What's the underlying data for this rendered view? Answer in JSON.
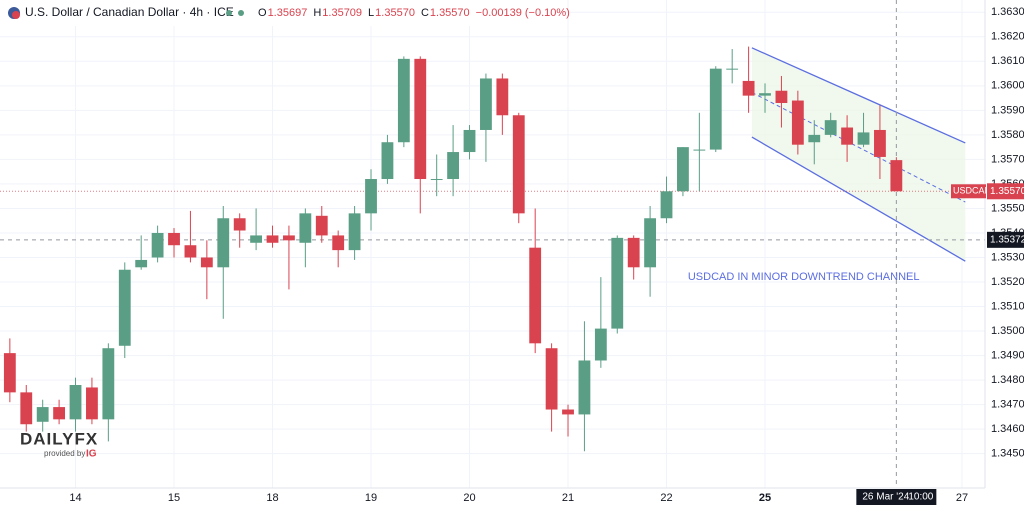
{
  "header": {
    "title": "U.S. Dollar / Canadian Dollar · 4h · ICE",
    "ohlc": [
      {
        "label": "O",
        "value": "1.35697"
      },
      {
        "label": "H",
        "value": "1.35709"
      },
      {
        "label": "L",
        "value": "1.35570"
      },
      {
        "label": "C",
        "value": "1.35570"
      }
    ],
    "change": "−0.00139 (−0.10%)"
  },
  "logo": {
    "brand": "DAILYFX",
    "provided": "provided by",
    "ig": "IG"
  },
  "chart_data": {
    "type": "candlestick",
    "up_color": "#5a9e85",
    "down_color": "#d9434f",
    "open": [
      1.3491,
      1.3475,
      1.3463,
      1.3469,
      1.3464,
      1.3477,
      1.3464,
      1.3494,
      1.3526,
      1.353,
      1.354,
      1.3535,
      1.353,
      1.3526,
      1.3546,
      1.3536,
      1.3539,
      1.3539,
      1.3536,
      1.3547,
      1.3539,
      1.3533,
      1.3548,
      1.3562,
      1.3577,
      1.3611,
      1.3562,
      1.3562,
      1.3573,
      1.3582,
      1.3603,
      1.3588,
      1.3534,
      1.3493,
      1.3468,
      1.3466,
      1.3488,
      1.3501,
      1.3538,
      1.3526,
      1.3546,
      1.3557,
      1.3574,
      1.3574,
      1.3607,
      1.3602,
      1.3596,
      1.3598,
      1.3594,
      1.3577,
      1.358,
      1.3583,
      1.3576,
      1.3582,
      1.35697
    ],
    "high": [
      1.3497,
      1.3478,
      1.3472,
      1.3472,
      1.3481,
      1.3481,
      1.3495,
      1.3528,
      1.3539,
      1.3543,
      1.3542,
      1.3549,
      1.3537,
      1.3551,
      1.3548,
      1.355,
      1.3543,
      1.3543,
      1.355,
      1.3551,
      1.3541,
      1.3551,
      1.3566,
      1.358,
      1.3612,
      1.3612,
      1.3572,
      1.3584,
      1.3584,
      1.3605,
      1.3605,
      1.3589,
      1.355,
      1.3495,
      1.347,
      1.3504,
      1.3522,
      1.3539,
      1.3539,
      1.3551,
      1.3563,
      1.3575,
      1.3589,
      1.3608,
      1.3615,
      1.3616,
      1.3601,
      1.3604,
      1.3598,
      1.3586,
      1.3589,
      1.3588,
      1.3589,
      1.3592,
      1.35709
    ],
    "low": [
      1.3471,
      1.3459,
      1.3459,
      1.3462,
      1.3459,
      1.3462,
      1.3455,
      1.3489,
      1.3525,
      1.3528,
      1.353,
      1.3528,
      1.3513,
      1.3505,
      1.3534,
      1.3533,
      1.3534,
      1.3517,
      1.3526,
      1.3536,
      1.3526,
      1.3529,
      1.3541,
      1.356,
      1.3575,
      1.3548,
      1.3555,
      1.3555,
      1.357,
      1.3569,
      1.358,
      1.3544,
      1.3491,
      1.3459,
      1.3457,
      1.3451,
      1.3485,
      1.3499,
      1.3521,
      1.3514,
      1.3544,
      1.3555,
      1.3557,
      1.3573,
      1.3601,
      1.3589,
      1.3589,
      1.3583,
      1.3572,
      1.3568,
      1.3579,
      1.3569,
      1.3575,
      1.3562,
      1.3557
    ],
    "close": [
      1.3475,
      1.3462,
      1.3469,
      1.3464,
      1.3478,
      1.3464,
      1.3493,
      1.3525,
      1.3529,
      1.354,
      1.3535,
      1.353,
      1.3526,
      1.3546,
      1.3541,
      1.3539,
      1.3536,
      1.3537,
      1.3548,
      1.3539,
      1.3533,
      1.3548,
      1.3562,
      1.3577,
      1.3611,
      1.3562,
      1.3562,
      1.3573,
      1.3582,
      1.3603,
      1.3588,
      1.3548,
      1.3495,
      1.3468,
      1.3466,
      1.3488,
      1.3501,
      1.3538,
      1.3526,
      1.3546,
      1.3557,
      1.3575,
      1.3574,
      1.3607,
      1.3607,
      1.3596,
      1.3597,
      1.3593,
      1.3576,
      1.358,
      1.3586,
      1.3576,
      1.3581,
      1.3571,
      1.3557
    ],
    "xlim": [
      -0.6,
      59.4
    ],
    "xticks": [
      {
        "value": 4,
        "label": "14"
      },
      {
        "value": 10,
        "label": "15"
      },
      {
        "value": 16,
        "label": "18"
      },
      {
        "value": 22,
        "label": "19"
      },
      {
        "value": 28,
        "label": "20"
      },
      {
        "value": 34,
        "label": "21"
      },
      {
        "value": 40,
        "label": "22"
      },
      {
        "value": 46,
        "label": "25"
      },
      {
        "value": 58,
        "label": "27"
      }
    ],
    "ylim": [
      1.3436,
      1.3635
    ],
    "yticks": [
      {
        "value": 1.345,
        "label": "1.34500"
      },
      {
        "value": 1.346,
        "label": "1.34600"
      },
      {
        "value": 1.347,
        "label": "1.34700"
      },
      {
        "value": 1.348,
        "label": "1.34800"
      },
      {
        "value": 1.349,
        "label": "1.34900"
      },
      {
        "value": 1.35,
        "label": "1.35000"
      },
      {
        "value": 1.351,
        "label": "1.35100"
      },
      {
        "value": 1.352,
        "label": "1.35200"
      },
      {
        "value": 1.353,
        "label": "1.35300"
      },
      {
        "value": 1.354,
        "label": "1.35400"
      },
      {
        "value": 1.355,
        "label": "1.35500"
      },
      {
        "value": 1.356,
        "label": "1.35600"
      },
      {
        "value": 1.357,
        "label": "1.35700"
      },
      {
        "value": 1.358,
        "label": "1.35800"
      },
      {
        "value": 1.359,
        "label": "1.35900"
      },
      {
        "value": 1.36,
        "label": "1.36000"
      },
      {
        "value": 1.361,
        "label": "1.36100"
      },
      {
        "value": 1.362,
        "label": "1.36200"
      },
      {
        "value": 1.363,
        "label": "1.36300"
      }
    ],
    "grid": true,
    "channel": {
      "x": [
        45.2,
        58.2
      ],
      "upper": [
        1.36155,
        1.35767
      ],
      "lower": [
        1.35791,
        1.35285
      ],
      "color": "#5b6ee1",
      "fill": "#eef6e9"
    },
    "annotation": {
      "text": "USDCAD IN MINOR DOWNTREND CHANNEL",
      "x": 41.3,
      "y": 1.3522
    },
    "last_price": {
      "value": 1.3557,
      "symbol": "USDCAD",
      "label": "1.35570"
    },
    "crosshair": {
      "x": 54,
      "x_label": "26 Mar '24",
      "time_label": "10:00",
      "y": 1.35372,
      "y_label": "1.35372"
    }
  }
}
